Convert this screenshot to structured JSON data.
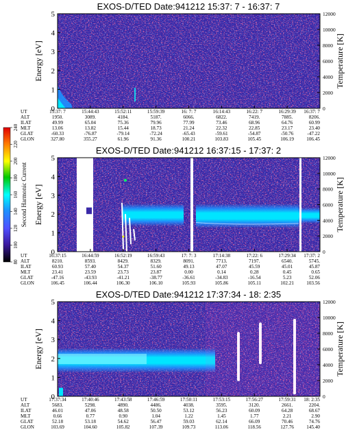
{
  "chart_data": [
    {
      "type": "heatmap",
      "title": "EXOS-D/TED   Date:941212  15:37: 7 - 16:37: 7",
      "ylabel": "Energy [eV]",
      "ylim": [
        0,
        5
      ],
      "yticks": [
        "5",
        "4",
        "3",
        "2",
        "1",
        "0"
      ],
      "y2label": "Temperature [K]",
      "y2lim": [
        0,
        12000
      ],
      "y2ticks": [
        "12000",
        "10000",
        "8000",
        "6000",
        "4000",
        "2000",
        "0"
      ],
      "row_labels": [
        "UT",
        "ALT",
        "ILAT",
        "MLT",
        "GLAT",
        "GLON"
      ],
      "columns": [
        [
          "15:37: 7",
          "1950.",
          "49.99",
          "13.06",
          "-60.33",
          "327.80"
        ],
        [
          "15:44:43",
          "3089.",
          "65.04",
          "13.82",
          "-76.87",
          "355.27"
        ],
        [
          "15:52:11",
          "4184.",
          "75.36",
          "15.44",
          "-79.14",
          "61.96"
        ],
        [
          "15:59:39",
          "5187.",
          "79.96",
          "18.73",
          "-72.24",
          "91.36"
        ],
        [
          "16: 7: 7",
          "6066.",
          "77.99",
          "21.24",
          "-65.43",
          "100.21"
        ],
        [
          "16:14:43",
          "6822.",
          "73.46",
          "22.32",
          "-59.61",
          "103.83"
        ],
        [
          "16:22: 7",
          "7419.",
          "68.96",
          "22.85",
          "-54.87",
          "105.45"
        ],
        [
          "16:29:39",
          "7885.",
          "64.76",
          "23.17",
          "-50.76",
          "106.19"
        ],
        [
          "16:37: 7",
          "8206.",
          "60.99",
          "23.40",
          "-47.22",
          "106.45"
        ]
      ]
    },
    {
      "type": "heatmap",
      "title": "EXOS-D/TED   Date:941212  16:37:15 - 17:37: 2",
      "ylabel": "Energy [eV]",
      "ylim": [
        0,
        5
      ],
      "yticks": [
        "5",
        "4",
        "3",
        "2",
        "1",
        "0"
      ],
      "y2label": "Temperature [K]",
      "y2lim": [
        0,
        12000
      ],
      "y2ticks": [
        "12000",
        "10000",
        "8000",
        "6000",
        "4000",
        "2000",
        "0"
      ],
      "row_labels": [
        "UT",
        "ALT",
        "ILAT",
        "MLT",
        "GLAT",
        "GLON"
      ],
      "columns": [
        [
          "16:37:15",
          "8210.",
          "60.93",
          "23.41",
          "-47.16",
          "106.45"
        ],
        [
          "16:44:59",
          "8593.",
          "57.40",
          "23.59",
          "-43.93",
          "106.44"
        ],
        [
          "16:52:19",
          "8429.",
          "54.37",
          "23.73",
          "-41.21",
          "106.30"
        ],
        [
          "16:59:43",
          "8329.",
          "51.60",
          "23.87",
          "-38.77",
          "106.10"
        ],
        [
          "17: 7: 3",
          "8091.",
          "49.13",
          "0.00",
          "-36.61",
          "105.93"
        ],
        [
          "17:14:38",
          "7713.",
          "47.07",
          "0.14",
          "-34.83",
          "105.86"
        ],
        [
          "17:22: 6",
          "7197.",
          "45.59",
          "0.28",
          "-16.54",
          "105.11"
        ],
        [
          "17:29:34",
          "6540.",
          "45.01",
          "0.45",
          "5.23",
          "102.21"
        ],
        [
          "17:37: 2",
          "5745.",
          "45.87",
          "0.65",
          "52.06",
          "103.56"
        ]
      ]
    },
    {
      "type": "heatmap",
      "title": "EXOS-D/TED   Date:941212  17:37:34 - 18: 2:35",
      "ylabel": "Energy [eV]",
      "ylim": [
        0,
        5
      ],
      "yticks": [
        "5",
        "4",
        "3",
        "2",
        "1",
        "0"
      ],
      "y2label": "Temperature [K]",
      "y2lim": [
        0,
        12000
      ],
      "y2ticks": [
        "12000",
        "10000",
        "8000",
        "6000",
        "4000",
        "2000",
        "0"
      ],
      "row_labels": [
        "UT",
        "ALT",
        "ILAT",
        "MLT",
        "GLAT",
        "GLON"
      ],
      "columns": [
        [
          "17:37:34",
          "5683.",
          "46.01",
          "0.66",
          "52.18",
          "103.69"
        ],
        [
          "17:40:46",
          "5298.",
          "47.06",
          "0.77",
          "53.18",
          "104.60"
        ],
        [
          "17:43:58",
          "4890.",
          "48.58",
          "0.90",
          "54.62",
          "105.82"
        ],
        [
          "17:46:59",
          "4486.",
          "50.50",
          "1.04",
          "56.47",
          "107.39"
        ],
        [
          "17:50:11",
          "4038.",
          "53.12",
          "1.22",
          "59.03",
          "109.73"
        ],
        [
          "17:53:15",
          "3595.",
          "56.23",
          "1.45",
          "62.14",
          "113.06"
        ],
        [
          "17:56:27",
          "3120.",
          "60.09",
          "1.77",
          "66.09",
          "118.56"
        ],
        [
          "17:59:31",
          "2661.",
          "64.28",
          "2.21",
          "70.46",
          "127.76"
        ],
        [
          "18: 2:35",
          "2204.",
          "68.67",
          "2.90",
          "74.76",
          "145.40"
        ]
      ]
    }
  ],
  "colorbar": {
    "label": "Second Harmonic Current",
    "ticks": [
      "240",
      "220",
      "200",
      "180",
      "160",
      "140",
      "120",
      "100",
      "80"
    ],
    "colors": [
      "#e00000",
      "#ff7a00",
      "#ffff00",
      "#00c800",
      "#00ffff",
      "#1e90ff",
      "#5050ff",
      "#3c1aa0",
      "#000000"
    ]
  }
}
